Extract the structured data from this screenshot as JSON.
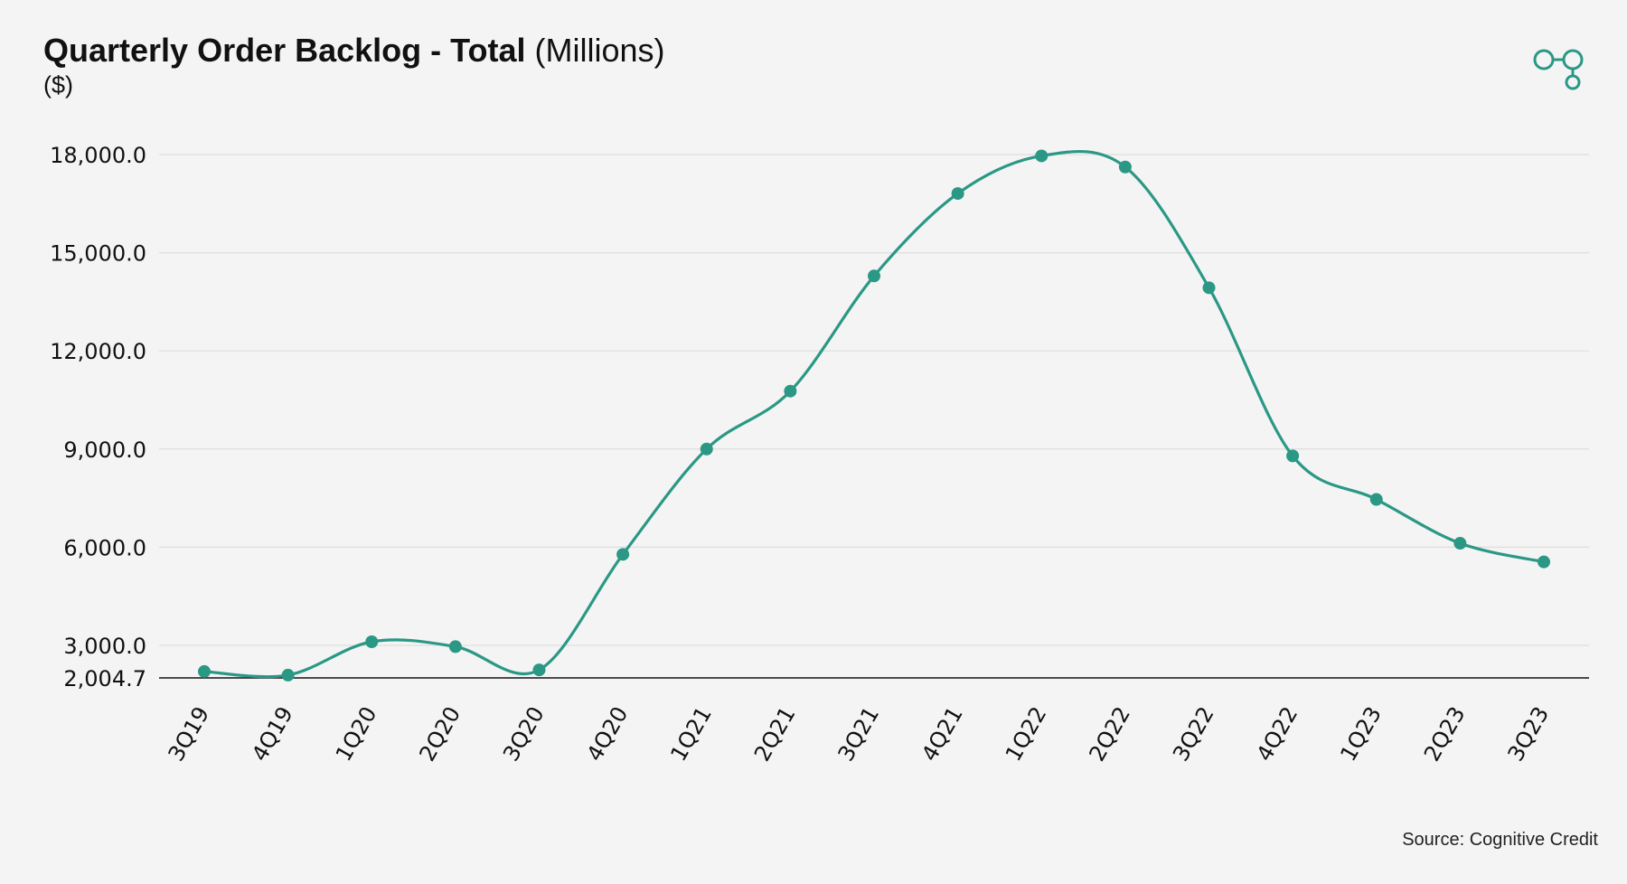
{
  "title": {
    "main": "Quarterly Order Backlog - Total",
    "unit": "(Millions)",
    "currency": "($)"
  },
  "logo": {
    "icon": "cognitive-credit-logo-icon",
    "color": "#2a9885"
  },
  "source": "Source: Cognitive Credit",
  "chart_data": {
    "type": "line",
    "title": "Quarterly Order Backlog - Total (Millions)",
    "ylabel": "($)",
    "xlabel": "",
    "categories": [
      "3Q19",
      "4Q19",
      "1Q20",
      "2Q20",
      "3Q20",
      "4Q20",
      "1Q21",
      "2Q21",
      "3Q21",
      "4Q21",
      "1Q22",
      "2Q22",
      "3Q22",
      "4Q22",
      "1Q23",
      "2Q23",
      "3Q23"
    ],
    "series": [
      {
        "values": [
          2200,
          2090,
          3110,
          2960,
          2250,
          5780,
          9000,
          10770,
          14290,
          16810,
          17960,
          17620,
          13930,
          8790,
          7460,
          6120,
          5550
        ]
      }
    ],
    "ylim": [
      2004.7,
      18000
    ],
    "yticks": [
      2004.7,
      3000,
      6000,
      9000,
      12000,
      15000,
      18000
    ],
    "ytick_labels": [
      "2,004.7",
      "3,000.0",
      "6,000.0",
      "9,000.0",
      "12,000.0",
      "15,000.0",
      "18,000.0"
    ],
    "smooth": true,
    "markers": true,
    "grid": true,
    "legend": false,
    "line_color": "#2a9885"
  }
}
